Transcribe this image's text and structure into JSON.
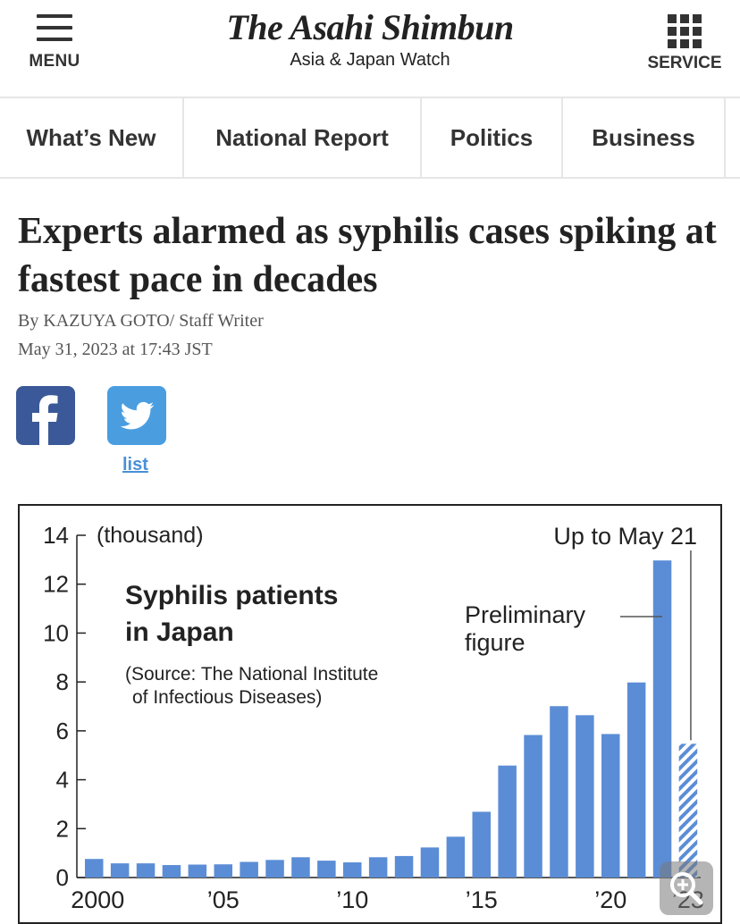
{
  "header": {
    "menu_label": "MENU",
    "logo_title": "The Asahi Shimbun",
    "logo_subtitle": "Asia & Japan Watch",
    "service_label": "SERVICE"
  },
  "nav": {
    "items": [
      "What’s New",
      "National Report",
      "Politics",
      "Business"
    ]
  },
  "article": {
    "headline": "Experts alarmed as syphilis cases spiking at fastest pace in decades",
    "byline": "By KAZUYA GOTO/ Staff Writer",
    "date": "May 31, 2023 at 17:43 JST"
  },
  "share": {
    "facebook_icon": "facebook-icon",
    "twitter_icon": "twitter-icon",
    "list_label": "list"
  },
  "zoom_icon": "zoom-in-icon",
  "chart_data": {
    "type": "bar",
    "title": "Syphilis patients in Japan",
    "source": "(Source: The National Institute of Infectious Diseases)",
    "unit": "(thousand)",
    "ylim": [
      0,
      14
    ],
    "yticks": [
      0,
      2,
      4,
      6,
      8,
      10,
      12,
      14
    ],
    "xtick_labels": [
      "2000",
      "’05",
      "’10",
      "’15",
      "’20",
      "’23"
    ],
    "categories": [
      "2000",
      "2001",
      "2002",
      "2003",
      "2004",
      "2005",
      "2006",
      "2007",
      "2008",
      "2009",
      "2010",
      "2011",
      "2012",
      "2013",
      "2014",
      "2015",
      "2016",
      "2017",
      "2018",
      "2019",
      "2020",
      "2021",
      "2022",
      "2023"
    ],
    "values": [
      0.76,
      0.58,
      0.58,
      0.51,
      0.53,
      0.54,
      0.64,
      0.72,
      0.83,
      0.69,
      0.62,
      0.83,
      0.88,
      1.23,
      1.67,
      2.69,
      4.58,
      5.83,
      7.01,
      6.64,
      5.87,
      7.98,
      12.97,
      5.47
    ],
    "preliminary_index": 23,
    "annotation_preliminary": [
      "Preliminary",
      "figure"
    ],
    "annotation_latest": "Up to May 21",
    "bar_color": "#5b8dd6"
  }
}
